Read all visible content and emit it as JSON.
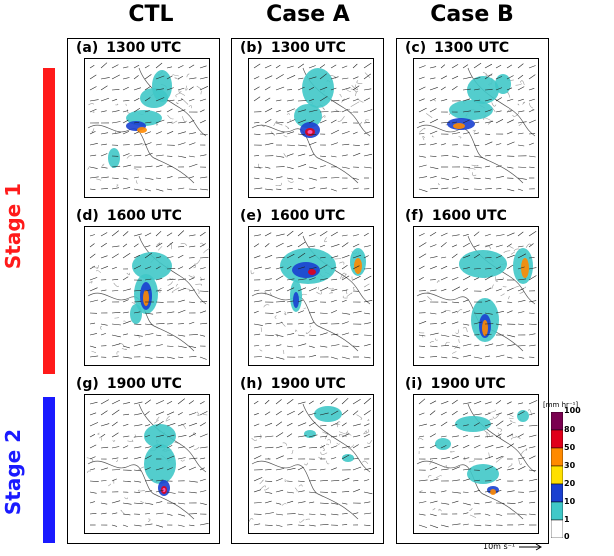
{
  "columns": [
    {
      "title": "CTL"
    },
    {
      "title": "Case A"
    },
    {
      "title": "Case B"
    }
  ],
  "stages": [
    {
      "label": "Stage 1",
      "color": "#ff1a1a"
    },
    {
      "label": "Stage 2",
      "color": "#1a1aff"
    }
  ],
  "panels": [
    {
      "label": "(a)",
      "time": "1300 UTC"
    },
    {
      "label": "(b)",
      "time": "1300 UTC"
    },
    {
      "label": "(c)",
      "time": "1300 UTC"
    },
    {
      "label": "(d)",
      "time": "1600 UTC"
    },
    {
      "label": "(e)",
      "time": "1600 UTC"
    },
    {
      "label": "(f)",
      "time": "1600 UTC"
    },
    {
      "label": "(g)",
      "time": "1900 UTC"
    },
    {
      "label": "(h)",
      "time": "1900 UTC"
    },
    {
      "label": "(i)",
      "time": "1900 UTC"
    }
  ],
  "colorbar": {
    "unit": "[mm hr⁻¹]",
    "ticks": [
      "100",
      "80",
      "50",
      "30",
      "20",
      "10",
      "1",
      "0"
    ],
    "colors": [
      "#7a0050",
      "#e0001a",
      "#ff8a00",
      "#ffe000",
      "#1a40d0",
      "#40c8c8",
      "#ffffff"
    ]
  },
  "vector_reference": "10m s⁻¹"
}
